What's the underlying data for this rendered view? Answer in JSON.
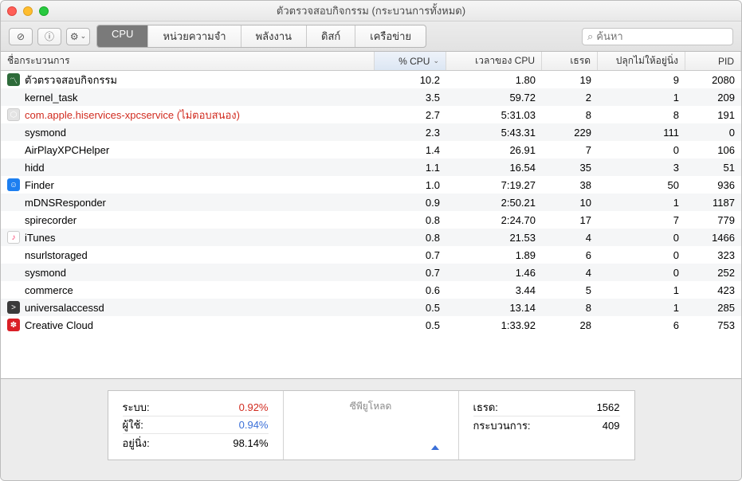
{
  "window": {
    "title": "ตัวตรวจสอบกิจกรรม (กระบวนการทั้งหมด)"
  },
  "toolbar": {
    "stop_icon": "⊘",
    "info_icon": "ⓘ",
    "gear_icon": "⚙︎",
    "gear_chevron": "⌄",
    "search_placeholder": "ค้นหา",
    "search_magnifier": "⌕"
  },
  "tabs": [
    {
      "label": "CPU",
      "active": true
    },
    {
      "label": "หน่วยความจำ",
      "active": false
    },
    {
      "label": "พลังงาน",
      "active": false
    },
    {
      "label": "ดิสก์",
      "active": false
    },
    {
      "label": "เครือข่าย",
      "active": false
    }
  ],
  "columns": {
    "name": "ชื่อกระบวนการ",
    "cpu": "% CPU",
    "time": "เวลาของ CPU",
    "threads": "เธรด",
    "idlewake": "ปลุกไม่ให้อยู่นิ่ง",
    "pid": "PID",
    "sort_indicator": "⌄"
  },
  "rows": [
    {
      "name": "ตัวตรวจสอบกิจกรรม",
      "cpu": "10.2",
      "time": "1.80",
      "threads": "19",
      "idlewake": "9",
      "pid": "2080",
      "icon_bg": "#2e6b3a",
      "icon_glyph": "〽︎",
      "unresp": false
    },
    {
      "name": "kernel_task",
      "cpu": "3.5",
      "time": "59.72",
      "threads": "2",
      "idlewake": "1",
      "pid": "209",
      "icon_bg": "",
      "icon_glyph": "",
      "unresp": false
    },
    {
      "name": "com.apple.hiservices-xpcservice (ไม่ตอบสนอง)",
      "cpu": "2.7",
      "time": "5:31.03",
      "threads": "8",
      "idlewake": "8",
      "pid": "191",
      "icon_bg": "#e3e3e3",
      "icon_glyph": "⬡",
      "unresp": true
    },
    {
      "name": "sysmond",
      "cpu": "2.3",
      "time": "5:43.31",
      "threads": "229",
      "idlewake": "111",
      "pid": "0",
      "icon_bg": "",
      "icon_glyph": "",
      "unresp": false
    },
    {
      "name": "AirPlayXPCHelper",
      "cpu": "1.4",
      "time": "26.91",
      "threads": "7",
      "idlewake": "0",
      "pid": "106",
      "icon_bg": "",
      "icon_glyph": "",
      "unresp": false
    },
    {
      "name": "hidd",
      "cpu": "1.1",
      "time": "16.54",
      "threads": "35",
      "idlewake": "3",
      "pid": "51",
      "icon_bg": "",
      "icon_glyph": "",
      "unresp": false
    },
    {
      "name": "Finder",
      "cpu": "1.0",
      "time": "7:19.27",
      "threads": "38",
      "idlewake": "50",
      "pid": "936",
      "icon_bg": "#1d7ff0",
      "icon_glyph": "☺︎",
      "unresp": false
    },
    {
      "name": "mDNSResponder",
      "cpu": "0.9",
      "time": "2:50.21",
      "threads": "10",
      "idlewake": "1",
      "pid": "1187",
      "icon_bg": "",
      "icon_glyph": "",
      "unresp": false
    },
    {
      "name": "spirecorder",
      "cpu": "0.8",
      "time": "2:24.70",
      "threads": "17",
      "idlewake": "7",
      "pid": "779",
      "icon_bg": "",
      "icon_glyph": "",
      "unresp": false
    },
    {
      "name": "iTunes",
      "cpu": "0.8",
      "time": "21.53",
      "threads": "4",
      "idlewake": "0",
      "pid": "1466",
      "icon_bg": "#ffffff",
      "icon_glyph": "♪",
      "unresp": false,
      "icon_color": "#fb3b6a"
    },
    {
      "name": "nsurlstoraged",
      "cpu": "0.7",
      "time": "1.89",
      "threads": "6",
      "idlewake": "0",
      "pid": "323",
      "icon_bg": "",
      "icon_glyph": "",
      "unresp": false
    },
    {
      "name": "sysmond",
      "cpu": "0.7",
      "time": "1.46",
      "threads": "4",
      "idlewake": "0",
      "pid": "252",
      "icon_bg": "",
      "icon_glyph": "",
      "unresp": false
    },
    {
      "name": "commerce",
      "cpu": "0.6",
      "time": "3.44",
      "threads": "5",
      "idlewake": "1",
      "pid": "423",
      "icon_bg": "",
      "icon_glyph": "",
      "unresp": false
    },
    {
      "name": "universalaccessd",
      "cpu": "0.5",
      "time": "13.14",
      "threads": "8",
      "idlewake": "1",
      "pid": "285",
      "icon_bg": "#3a3a3a",
      "icon_glyph": ">",
      "unresp": false
    },
    {
      "name": "Creative Cloud",
      "cpu": "0.5",
      "time": "1:33.92",
      "threads": "28",
      "idlewake": "6",
      "pid": "753",
      "icon_bg": "#da1f26",
      "icon_glyph": "✽",
      "unresp": false
    }
  ],
  "footer": {
    "left": {
      "system_label": "ระบบ:",
      "system_val": "0.92%",
      "system_color": "#d12b1f",
      "user_label": "ผู้ใช้:",
      "user_val": "0.94%",
      "user_color": "#3a6fd8",
      "idle_label": "อยู่นิ่ง:",
      "idle_val": "98.14%",
      "idle_color": "#000000"
    },
    "mid": {
      "title": "ซีพียูโหลด"
    },
    "right": {
      "threads_label": "เธรด:",
      "threads_val": "1562",
      "procs_label": "กระบวนการ:",
      "procs_val": "409"
    }
  }
}
